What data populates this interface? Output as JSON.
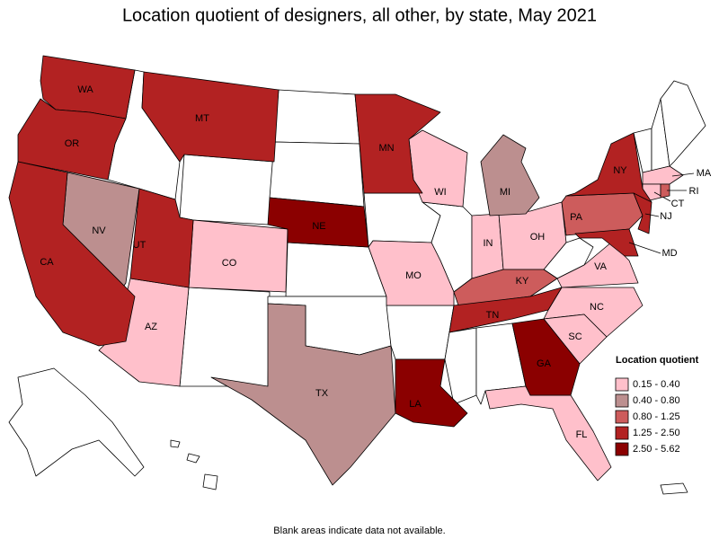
{
  "title": "Location quotient of designers, all other, by state, May 2021",
  "legend": {
    "title": "Location quotient",
    "items": [
      {
        "label": "0.15 - 0.40",
        "color": "#ffc0cb",
        "states": [
          "AZ",
          "CO",
          "WI",
          "IN",
          "OH",
          "MO",
          "VA",
          "NC",
          "SC",
          "FL",
          "MA",
          "CT"
        ]
      },
      {
        "label": "0.40 - 0.80",
        "color": "#bc8f8f",
        "states": [
          "NV",
          "MI",
          "TX"
        ]
      },
      {
        "label": "0.80 - 1.25",
        "color": "#cd5c5c",
        "states": [
          "KY",
          "PA",
          "RI"
        ]
      },
      {
        "label": "1.25 - 2.50",
        "color": "#b22222",
        "states": [
          "WA",
          "OR",
          "CA",
          "UT",
          "MT",
          "MN",
          "TN",
          "NY",
          "NJ",
          "MD"
        ]
      },
      {
        "label": "2.50 - 5.62",
        "color": "#8b0000",
        "states": [
          "NE",
          "GA",
          "LA"
        ]
      }
    ]
  },
  "note": "Blank areas indicate data not available."
}
